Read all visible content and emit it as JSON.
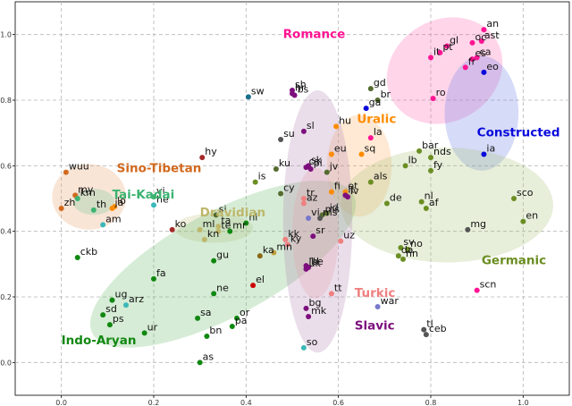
{
  "chart_data": {
    "type": "scatter",
    "xlim": [
      -0.1,
      1.1
    ],
    "ylim": [
      -0.1,
      1.1
    ],
    "x_ticks": [
      "0.0",
      "0.2",
      "0.4",
      "0.6",
      "0.8",
      "1.0"
    ],
    "y_ticks": [
      "0.0",
      "0.2",
      "0.4",
      "0.6",
      "0.8",
      "1.0"
    ],
    "grid": true,
    "groups": [
      {
        "name": "Romance",
        "color": "#ff1493",
        "fill": "#ff69b4",
        "label_pos": [
          0.48,
          0.99
        ],
        "ellipse": {
          "cx": 0.83,
          "cy": 0.89,
          "rx": 0.13,
          "ry": 0.155,
          "angle": -30
        }
      },
      {
        "name": "Constructed",
        "color": "#0a0adc",
        "fill": "#6a7ee6",
        "label_pos": [
          0.9,
          0.69
        ],
        "ellipse": {
          "cx": 0.91,
          "cy": 0.76,
          "rx": 0.08,
          "ry": 0.175,
          "angle": 0
        }
      },
      {
        "name": "Uralic",
        "color": "#ff8c00",
        "fill": "#ffb066",
        "label_pos": [
          0.64,
          0.73
        ],
        "ellipse": {
          "cx": 0.645,
          "cy": 0.6,
          "rx": 0.07,
          "ry": 0.155,
          "angle": 0
        }
      },
      {
        "name": "Sino-Tibetan",
        "color": "#d2691e",
        "fill": "#e9a36c",
        "label_pos": [
          0.12,
          0.58
        ],
        "ellipse": {
          "cx": 0.06,
          "cy": 0.505,
          "rx": 0.08,
          "ry": 0.1,
          "angle": 0
        }
      },
      {
        "name": "Tai-Kadai",
        "color": "#3cb371",
        "fill": "#74c69a",
        "label_pos": [
          0.11,
          0.5
        ],
        "ellipse": {
          "cx": 0.07,
          "cy": 0.49,
          "rx": 0.045,
          "ry": 0.04,
          "angle": 0
        }
      },
      {
        "name": "Dravidian",
        "color": "#bdb76b",
        "fill": "#c9c48a",
        "label_pos": [
          0.3,
          0.445
        ],
        "ellipse": {
          "cx": 0.33,
          "cy": 0.41,
          "rx": 0.085,
          "ry": 0.045,
          "angle": 0
        }
      },
      {
        "name": "Indo-Aryan",
        "color": "#118811",
        "fill": "#6dbb6d",
        "label_pos": [
          0.0,
          0.055
        ],
        "ellipse": {
          "cx": 0.35,
          "cy": 0.3,
          "rx": 0.32,
          "ry": 0.16,
          "angle": -28
        }
      },
      {
        "name": "Germanic",
        "color": "#6b8e23",
        "fill": "#a9c17a",
        "label_pos": [
          0.91,
          0.3
        ],
        "ellipse": {
          "cx": 0.835,
          "cy": 0.48,
          "rx": 0.23,
          "ry": 0.175,
          "angle": 0
        }
      },
      {
        "name": "Turkic",
        "color": "#f08080",
        "fill": "#f6a5a5",
        "label_pos": [
          0.635,
          0.2
        ],
        "ellipse": {
          "cx": 0.55,
          "cy": 0.395,
          "rx": 0.05,
          "ry": 0.2,
          "angle": 0
        }
      },
      {
        "name": "Slavic",
        "color": "#7d0f7d",
        "fill": "#b58ab5",
        "label_pos": [
          0.635,
          0.1
        ],
        "ellipse": {
          "cx": 0.555,
          "cy": 0.43,
          "rx": 0.075,
          "ry": 0.4,
          "angle": 0
        }
      }
    ],
    "points": [
      {
        "label": "an",
        "x": 0.915,
        "y": 1.015,
        "color": "#ff1493"
      },
      {
        "label": "ast",
        "x": 0.91,
        "y": 0.98,
        "color": "#ff1493"
      },
      {
        "label": "oc",
        "x": 0.89,
        "y": 0.975,
        "color": "#ff1493"
      },
      {
        "label": "gl",
        "x": 0.835,
        "y": 0.965,
        "color": "#ff1493"
      },
      {
        "label": "pt",
        "x": 0.82,
        "y": 0.945,
        "color": "#ff1493"
      },
      {
        "label": "ca",
        "x": 0.9,
        "y": 0.93,
        "color": "#ff1493"
      },
      {
        "label": "es",
        "x": 0.89,
        "y": 0.925,
        "color": "#ff1493"
      },
      {
        "label": "it",
        "x": 0.8,
        "y": 0.93,
        "color": "#ff1493"
      },
      {
        "label": "fr",
        "x": 0.875,
        "y": 0.9,
        "color": "#ff1493"
      },
      {
        "label": "ro",
        "x": 0.805,
        "y": 0.805,
        "color": "#ff1493"
      },
      {
        "label": "eo",
        "x": 0.915,
        "y": 0.885,
        "color": "#0a0adc"
      },
      {
        "label": "ia",
        "x": 0.915,
        "y": 0.635,
        "color": "#0a0adc"
      },
      {
        "label": "hu",
        "x": 0.595,
        "y": 0.72,
        "color": "#ff8c00"
      },
      {
        "label": "fi",
        "x": 0.585,
        "y": 0.52,
        "color": "#ff8c00"
      },
      {
        "label": "et",
        "x": 0.615,
        "y": 0.52,
        "color": "#ff8c00"
      },
      {
        "label": "eu",
        "x": 0.585,
        "y": 0.635,
        "color": "#ff8c00"
      },
      {
        "label": "sq",
        "x": 0.65,
        "y": 0.635,
        "color": "#ff8c00"
      },
      {
        "label": "wuu",
        "x": 0.01,
        "y": 0.58,
        "color": "#d2691e"
      },
      {
        "label": "my",
        "x": 0.03,
        "y": 0.51,
        "color": "#d2691e"
      },
      {
        "label": "zh",
        "x": 0.0,
        "y": 0.47,
        "color": "#d2691e"
      },
      {
        "label": "km",
        "x": 0.035,
        "y": 0.5,
        "color": "#3cb371"
      },
      {
        "label": "th",
        "x": 0.07,
        "y": 0.465,
        "color": "#3cb371"
      },
      {
        "label": "lo",
        "x": 0.115,
        "y": 0.475,
        "color": "#ff8c00"
      },
      {
        "label": "vi",
        "x": 0.2,
        "y": 0.505,
        "color": "#3cb371"
      },
      {
        "label": "hy",
        "x": 0.305,
        "y": 0.625,
        "color": "#a52a2a"
      },
      {
        "label": "ta",
        "x": 0.34,
        "y": 0.415,
        "color": "#bdb76b"
      },
      {
        "label": "ml",
        "x": 0.3,
        "y": 0.405,
        "color": "#bdb76b"
      },
      {
        "label": "te",
        "x": 0.34,
        "y": 0.4,
        "color": "#bdb76b"
      },
      {
        "label": "kn",
        "x": 0.31,
        "y": 0.375,
        "color": "#bdb76b"
      },
      {
        "label": "si",
        "x": 0.335,
        "y": 0.45,
        "color": "#556b2f"
      },
      {
        "label": "hi",
        "x": 0.4,
        "y": 0.425,
        "color": "#118811"
      },
      {
        "label": "mr",
        "x": 0.365,
        "y": 0.4,
        "color": "#118811"
      },
      {
        "label": "ckb",
        "x": 0.035,
        "y": 0.32,
        "color": "#118811"
      },
      {
        "label": "gu",
        "x": 0.33,
        "y": 0.31,
        "color": "#118811"
      },
      {
        "label": "fa",
        "x": 0.2,
        "y": 0.255,
        "color": "#118811"
      },
      {
        "label": "ug",
        "x": 0.11,
        "y": 0.19,
        "color": "#118811"
      },
      {
        "label": "arz",
        "x": 0.14,
        "y": 0.175,
        "color": "#3cb8b8"
      },
      {
        "label": "sd",
        "x": 0.09,
        "y": 0.145,
        "color": "#118811"
      },
      {
        "label": "ps",
        "x": 0.105,
        "y": 0.115,
        "color": "#118811"
      },
      {
        "label": "ur",
        "x": 0.18,
        "y": 0.09,
        "color": "#118811"
      },
      {
        "label": "ne",
        "x": 0.33,
        "y": 0.21,
        "color": "#118811"
      },
      {
        "label": "sa",
        "x": 0.295,
        "y": 0.135,
        "color": "#118811"
      },
      {
        "label": "or",
        "x": 0.38,
        "y": 0.135,
        "color": "#118811"
      },
      {
        "label": "pa",
        "x": 0.37,
        "y": 0.11,
        "color": "#118811"
      },
      {
        "label": "bn",
        "x": 0.315,
        "y": 0.08,
        "color": "#118811"
      },
      {
        "label": "as",
        "x": 0.3,
        "y": 0.0,
        "color": "#118811"
      },
      {
        "label": "ko",
        "x": 0.24,
        "y": 0.405,
        "color": "#a52a2a"
      },
      {
        "label": "ja",
        "x": 0.11,
        "y": 0.47,
        "color": "#ff8c00"
      },
      {
        "label": "am",
        "x": 0.09,
        "y": 0.42,
        "color": "#3cb8b8"
      },
      {
        "label": "he",
        "x": 0.2,
        "y": 0.48,
        "color": "#3cb8b8"
      },
      {
        "label": "sw",
        "x": 0.405,
        "y": 0.81,
        "color": "#1b6f8c"
      },
      {
        "label": "sh",
        "x": 0.5,
        "y": 0.83,
        "color": "#7d0f7d"
      },
      {
        "label": "hr",
        "x": 0.5,
        "y": 0.82,
        "color": "#7d0f7d"
      },
      {
        "label": "bs",
        "x": 0.505,
        "y": 0.815,
        "color": "#7d0f7d"
      },
      {
        "label": "su",
        "x": 0.475,
        "y": 0.68,
        "color": "#555555"
      },
      {
        "label": "sl",
        "x": 0.525,
        "y": 0.705,
        "color": "#7d0f7d"
      },
      {
        "label": "ku",
        "x": 0.465,
        "y": 0.59,
        "color": "#556b2f"
      },
      {
        "label": "is",
        "x": 0.42,
        "y": 0.55,
        "color": "#6b8e23"
      },
      {
        "label": "cy",
        "x": 0.475,
        "y": 0.515,
        "color": "#556b2f"
      },
      {
        "label": "tr",
        "x": 0.525,
        "y": 0.5,
        "color": "#f08080"
      },
      {
        "label": "az",
        "x": 0.525,
        "y": 0.485,
        "color": "#f08080"
      },
      {
        "label": "sk",
        "x": 0.535,
        "y": 0.6,
        "color": "#7d0f7d"
      },
      {
        "label": "cs",
        "x": 0.53,
        "y": 0.595,
        "color": "#7d0f7d"
      },
      {
        "label": "pl",
        "x": 0.54,
        "y": 0.59,
        "color": "#7d0f7d"
      },
      {
        "label": "jv",
        "x": 0.575,
        "y": 0.58,
        "color": "#556b2f"
      },
      {
        "label": "ms",
        "x": 0.565,
        "y": 0.45,
        "color": "#556b2f"
      },
      {
        "label": "id",
        "x": 0.575,
        "y": 0.455,
        "color": "#556b2f"
      },
      {
        "label": "lv",
        "x": 0.62,
        "y": 0.505,
        "color": "#7d0f7d"
      },
      {
        "label": "lt",
        "x": 0.615,
        "y": 0.51,
        "color": "#7d0f7d"
      },
      {
        "label": "vi",
        "x": 0.535,
        "y": 0.44,
        "color": "#7777cc"
      },
      {
        "label": "kk",
        "x": 0.485,
        "y": 0.375,
        "color": "#f08080"
      },
      {
        "label": "ky",
        "x": 0.49,
        "y": 0.36,
        "color": "#f08080"
      },
      {
        "label": "ka",
        "x": 0.43,
        "y": 0.325,
        "color": "#8b6914"
      },
      {
        "label": "mn",
        "x": 0.46,
        "y": 0.335,
        "color": "#c0a040"
      },
      {
        "label": "sr",
        "x": 0.545,
        "y": 0.385,
        "color": "#7d0f7d"
      },
      {
        "label": "uz",
        "x": 0.605,
        "y": 0.37,
        "color": "#f08080"
      },
      {
        "label": "ru",
        "x": 0.53,
        "y": 0.295,
        "color": "#7d0f7d"
      },
      {
        "label": "uk",
        "x": 0.53,
        "y": 0.285,
        "color": "#7d0f7d"
      },
      {
        "label": "be",
        "x": 0.535,
        "y": 0.29,
        "color": "#7d0f7d"
      },
      {
        "label": "el",
        "x": 0.415,
        "y": 0.235,
        "color": "#cc0000"
      },
      {
        "label": "tt",
        "x": 0.585,
        "y": 0.21,
        "color": "#f08080"
      },
      {
        "label": "bg",
        "x": 0.53,
        "y": 0.165,
        "color": "#7d0f7d"
      },
      {
        "label": "mk",
        "x": 0.535,
        "y": 0.14,
        "color": "#7d0f7d"
      },
      {
        "label": "so",
        "x": 0.525,
        "y": 0.045,
        "color": "#3cb8b8"
      },
      {
        "label": "gd",
        "x": 0.67,
        "y": 0.835,
        "color": "#556b2f"
      },
      {
        "label": "br",
        "x": 0.685,
        "y": 0.8,
        "color": "#556b2f"
      },
      {
        "label": "ga",
        "x": 0.66,
        "y": 0.775,
        "color": "#0a0adc"
      },
      {
        "label": "la",
        "x": 0.67,
        "y": 0.685,
        "color": "#ff1493"
      },
      {
        "label": "als",
        "x": 0.67,
        "y": 0.55,
        "color": "#6b8e23"
      },
      {
        "label": "bar",
        "x": 0.775,
        "y": 0.645,
        "color": "#6b8e23"
      },
      {
        "label": "lb",
        "x": 0.745,
        "y": 0.6,
        "color": "#6b8e23"
      },
      {
        "label": "nds",
        "x": 0.8,
        "y": 0.625,
        "color": "#6b8e23"
      },
      {
        "label": "fy",
        "x": 0.8,
        "y": 0.585,
        "color": "#6b8e23"
      },
      {
        "label": "de",
        "x": 0.705,
        "y": 0.485,
        "color": "#6b8e23"
      },
      {
        "label": "nl",
        "x": 0.78,
        "y": 0.49,
        "color": "#6b8e23"
      },
      {
        "label": "af",
        "x": 0.79,
        "y": 0.47,
        "color": "#6b8e23"
      },
      {
        "label": "sco",
        "x": 0.98,
        "y": 0.5,
        "color": "#6b8e23"
      },
      {
        "label": "en",
        "x": 1.0,
        "y": 0.43,
        "color": "#6b8e23"
      },
      {
        "label": "mg",
        "x": 0.88,
        "y": 0.405,
        "color": "#555555"
      },
      {
        "label": "sv",
        "x": 0.735,
        "y": 0.35,
        "color": "#6b8e23"
      },
      {
        "label": "no",
        "x": 0.75,
        "y": 0.345,
        "color": "#6b8e23"
      },
      {
        "label": "da",
        "x": 0.73,
        "y": 0.325,
        "color": "#6b8e23"
      },
      {
        "label": "nn",
        "x": 0.74,
        "y": 0.315,
        "color": "#6b8e23"
      },
      {
        "label": "scn",
        "x": 0.9,
        "y": 0.22,
        "color": "#ff1493"
      },
      {
        "label": "war",
        "x": 0.685,
        "y": 0.17,
        "color": "#7777cc"
      },
      {
        "label": "tl",
        "x": 0.785,
        "y": 0.1,
        "color": "#555555"
      },
      {
        "label": "ceb",
        "x": 0.79,
        "y": 0.085,
        "color": "#555555"
      },
      {
        "label": "ms",
        "x": 0.56,
        "y": 0.44,
        "color": "#555555"
      }
    ]
  }
}
